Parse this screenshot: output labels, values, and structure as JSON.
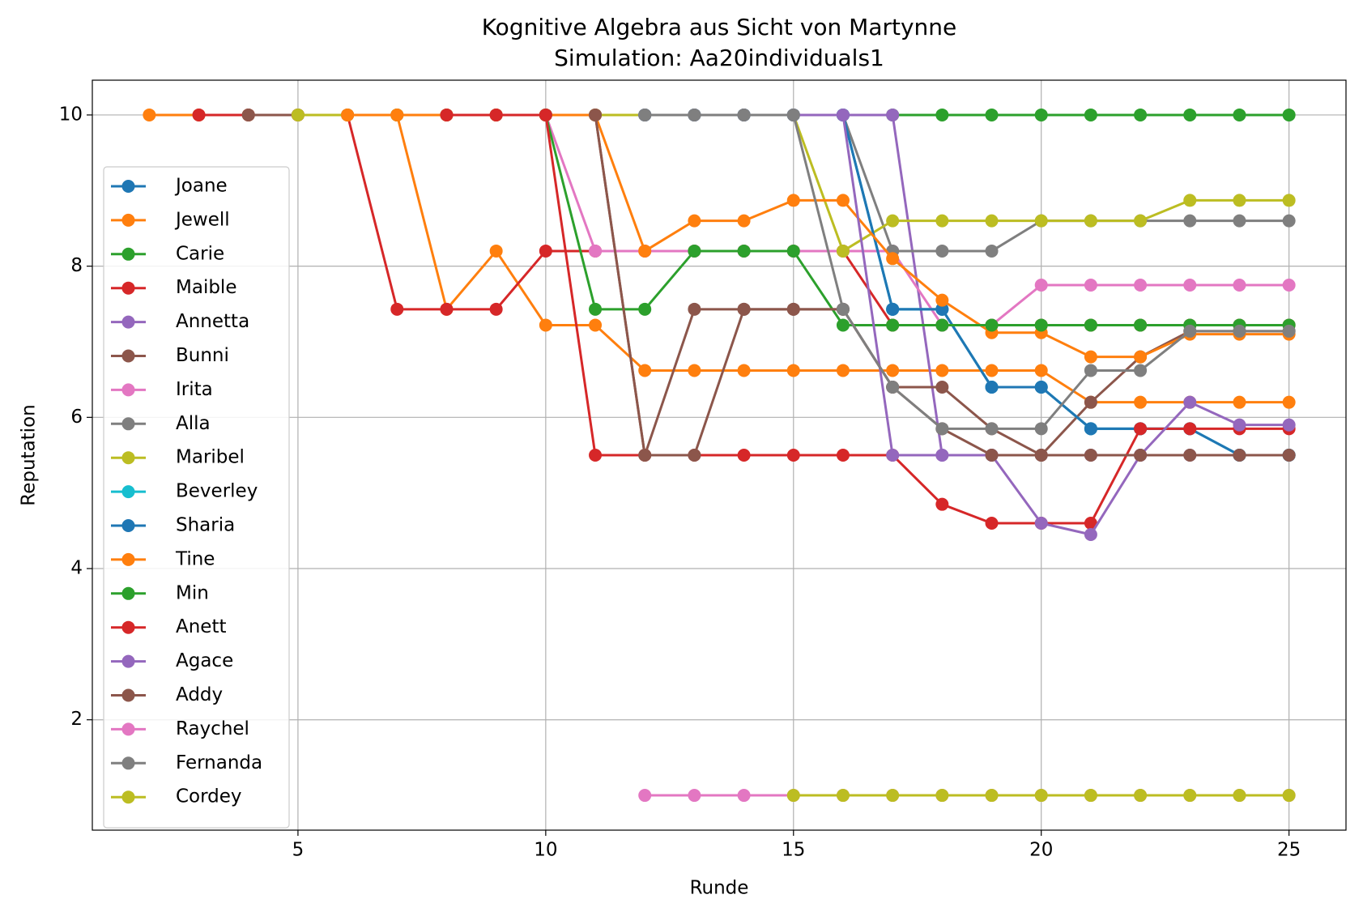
{
  "chart_data": {
    "type": "line",
    "title": "Kognitive Algebra aus Sicht von Martynne",
    "subtitle": "Simulation: Aa20individuals1",
    "x_label": "Runde",
    "y_label": "Reputation",
    "x": [
      2,
      3,
      4,
      5,
      6,
      7,
      8,
      9,
      10,
      11,
      12,
      13,
      14,
      15,
      16,
      17,
      18,
      19,
      20,
      21,
      22,
      23,
      24,
      25
    ],
    "xlim": [
      0.85,
      26.15
    ],
    "xticks": [
      5,
      10,
      15,
      20,
      25
    ],
    "ylim": [
      0.54,
      10.46
    ],
    "yticks": [
      2,
      4,
      6,
      8,
      10
    ],
    "grid": true,
    "legend": "left",
    "series": [
      {
        "name": "Joane",
        "color": "#1f77b4",
        "values": [
          null,
          null,
          null,
          null,
          null,
          null,
          null,
          null,
          null,
          null,
          10,
          10,
          10,
          10,
          10,
          7.43,
          7.43,
          6.4,
          6.4,
          5.85,
          5.85,
          5.85,
          5.5,
          5.5
        ]
      },
      {
        "name": "Jewell",
        "color": "#ff7f0e",
        "values": [
          10,
          10,
          10,
          10,
          10,
          10,
          7.43,
          8.2,
          7.22,
          7.22,
          6.62,
          6.62,
          6.62,
          6.62,
          6.62,
          6.62,
          6.62,
          6.62,
          6.62,
          6.2,
          6.2,
          6.2,
          6.2,
          6.2
        ]
      },
      {
        "name": "Carie",
        "color": "#2ca02c",
        "values": [
          null,
          null,
          null,
          null,
          null,
          10,
          10,
          10,
          10,
          10,
          10,
          10,
          10,
          10,
          10,
          10,
          10,
          10,
          10,
          10,
          10,
          10,
          10,
          10
        ]
      },
      {
        "name": "Maible",
        "color": "#d62728",
        "values": [
          null,
          10,
          10,
          10,
          10,
          7.43,
          7.43,
          7.43,
          8.2,
          8.2,
          8.2,
          8.2,
          8.2,
          8.2,
          8.2,
          7.22,
          7.22,
          7.22,
          7.22,
          7.22,
          7.22,
          7.22,
          7.22,
          7.22
        ]
      },
      {
        "name": "Annetta",
        "color": "#9467bd",
        "values": [
          null,
          null,
          null,
          null,
          null,
          null,
          null,
          10,
          10,
          10,
          10,
          10,
          10,
          10,
          10,
          10,
          5.5,
          5.5,
          5.5,
          5.5,
          5.5,
          5.5,
          5.5,
          5.5
        ]
      },
      {
        "name": "Bunni",
        "color": "#8c564b",
        "values": [
          null,
          null,
          10,
          10,
          10,
          10,
          10,
          10,
          10,
          10,
          5.5,
          7.43,
          7.43,
          7.43,
          7.43,
          6.4,
          6.4,
          5.85,
          5.5,
          6.2,
          6.8,
          7.14,
          7.14,
          7.14
        ]
      },
      {
        "name": "Irita",
        "color": "#e377c2",
        "values": [
          null,
          null,
          null,
          null,
          null,
          null,
          null,
          10,
          10,
          8.2,
          8.2,
          8.2,
          8.2,
          8.2,
          8.2,
          8.2,
          7.22,
          7.22,
          7.75,
          7.75,
          7.75,
          7.75,
          7.75,
          7.75
        ]
      },
      {
        "name": "Alla",
        "color": "#7f7f7f",
        "values": [
          null,
          null,
          null,
          null,
          null,
          null,
          null,
          null,
          null,
          null,
          10,
          10,
          10,
          10,
          10,
          8.2,
          8.2,
          8.2,
          8.6,
          8.6,
          8.6,
          8.6,
          8.6,
          8.6
        ]
      },
      {
        "name": "Maribel",
        "color": "#bcbd22",
        "values": [
          null,
          null,
          null,
          10,
          10,
          10,
          10,
          10,
          10,
          10,
          10,
          10,
          10,
          10,
          8.2,
          8.6,
          8.6,
          8.6,
          8.6,
          8.6,
          8.6,
          8.87,
          8.87,
          8.87
        ]
      },
      {
        "name": "Beverley",
        "color": "#17becf",
        "values": [
          null,
          null,
          null,
          null,
          null,
          null,
          null,
          null,
          null,
          null,
          10,
          10,
          10,
          10,
          10,
          7.43,
          7.43,
          6.4,
          6.4,
          5.85,
          5.85,
          5.85,
          5.5,
          5.5
        ]
      },
      {
        "name": "Sharia",
        "color": "#1f77b4",
        "values": [
          null,
          null,
          null,
          null,
          null,
          null,
          null,
          null,
          null,
          null,
          10,
          10,
          10,
          10,
          10,
          7.43,
          7.43,
          6.4,
          6.4,
          5.85,
          5.85,
          5.85,
          5.5,
          5.5
        ]
      },
      {
        "name": "Tine",
        "color": "#ff7f0e",
        "values": [
          null,
          null,
          null,
          null,
          10,
          10,
          10,
          10,
          10,
          10,
          8.2,
          8.6,
          8.6,
          8.87,
          8.87,
          8.1,
          7.55,
          7.12,
          7.12,
          6.8,
          6.8,
          7.1,
          7.1,
          7.1
        ]
      },
      {
        "name": "Min",
        "color": "#2ca02c",
        "values": [
          null,
          null,
          null,
          null,
          null,
          null,
          null,
          null,
          10,
          7.43,
          7.43,
          8.2,
          8.2,
          8.2,
          7.22,
          7.22,
          7.22,
          7.22,
          7.22,
          7.22,
          7.22,
          7.22,
          7.22,
          7.22
        ]
      },
      {
        "name": "Anett",
        "color": "#d62728",
        "values": [
          null,
          null,
          null,
          null,
          null,
          null,
          10,
          10,
          10,
          5.5,
          5.5,
          5.5,
          5.5,
          5.5,
          5.5,
          5.5,
          4.85,
          4.6,
          4.6,
          4.6,
          5.85,
          5.85,
          5.85,
          5.85
        ]
      },
      {
        "name": "Agace",
        "color": "#9467bd",
        "values": [
          null,
          null,
          null,
          null,
          null,
          null,
          null,
          null,
          null,
          null,
          10,
          10,
          10,
          10,
          10,
          5.5,
          5.5,
          5.5,
          4.6,
          4.45,
          5.5,
          6.2,
          5.9,
          5.9
        ]
      },
      {
        "name": "Addy",
        "color": "#8c564b",
        "values": [
          null,
          null,
          null,
          null,
          null,
          null,
          null,
          null,
          null,
          10,
          5.5,
          5.5,
          7.43,
          7.43,
          7.43,
          6.4,
          5.85,
          5.5,
          5.5,
          5.5,
          5.5,
          5.5,
          5.5,
          5.5
        ]
      },
      {
        "name": "Raychel",
        "color": "#e377c2",
        "values": [
          null,
          null,
          null,
          null,
          null,
          null,
          null,
          null,
          null,
          null,
          1,
          1,
          1,
          1,
          1,
          1,
          1,
          1,
          1,
          1,
          1,
          1,
          1,
          1
        ]
      },
      {
        "name": "Fernanda",
        "color": "#7f7f7f",
        "values": [
          null,
          null,
          null,
          null,
          null,
          null,
          null,
          null,
          null,
          null,
          10,
          10,
          10,
          10,
          7.43,
          6.4,
          5.85,
          5.85,
          5.85,
          6.62,
          6.62,
          7.14,
          7.14,
          7.14
        ]
      },
      {
        "name": "Cordey",
        "color": "#bcbd22",
        "values": [
          null,
          null,
          null,
          null,
          null,
          null,
          null,
          null,
          null,
          null,
          null,
          null,
          null,
          1,
          1,
          1,
          1,
          1,
          1,
          1,
          1,
          1,
          1,
          1
        ]
      }
    ]
  }
}
